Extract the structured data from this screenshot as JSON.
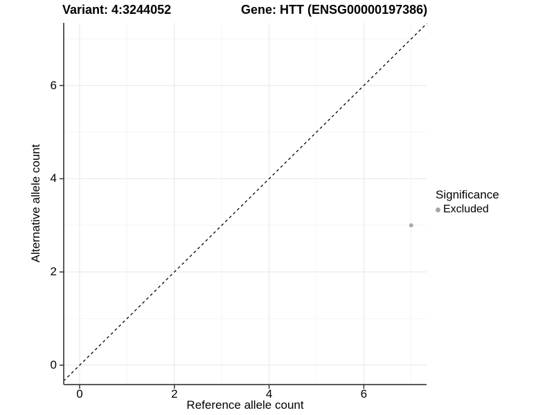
{
  "chart_data": {
    "type": "scatter",
    "titles": {
      "variant": "Variant: 4:3244052",
      "gene": "Gene: HTT (ENSG00000197386)"
    },
    "xlabel": "Reference allele count",
    "ylabel": "Alternative allele count",
    "x_ticks": [
      0,
      2,
      4,
      6
    ],
    "y_ticks": [
      0,
      2,
      4,
      6
    ],
    "x_minor": [
      1,
      3,
      5,
      7
    ],
    "y_minor": [
      1,
      3,
      5,
      7
    ],
    "xlim": [
      -0.34,
      7.33
    ],
    "ylim": [
      -0.42,
      7.34
    ],
    "grid": true,
    "identity_line": {
      "style": "dashed",
      "slope": 1,
      "intercept": 0,
      "color": "#000000"
    },
    "points": [
      {
        "x": 7,
        "y": 3,
        "significance": "Excluded",
        "color": "#ababab",
        "radius": 3
      }
    ],
    "legend": {
      "position": "right",
      "title": "Significance",
      "items": [
        {
          "label": "Excluded",
          "color": "#a6a6a6"
        }
      ]
    },
    "colors": {
      "background": "#ffffff",
      "grid_major": "#ebebeb",
      "grid_minor": "#f4f4f4",
      "axis_line": "#595959",
      "tick_mark": "#333333",
      "text": "#000000"
    }
  }
}
